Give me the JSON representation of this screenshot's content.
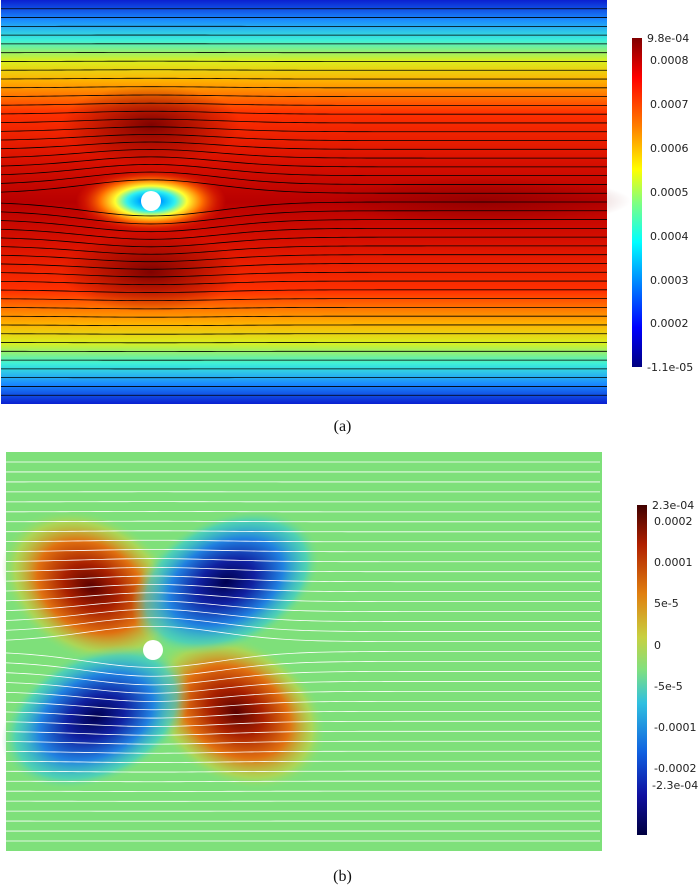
{
  "panels": [
    {
      "caption": "(a)",
      "colorbar": {
        "max_label": "9.8e-04",
        "min_label": "-1.1e-05",
        "ticks": [
          "0.0008",
          "0.0007",
          "0.0006",
          "0.0005",
          "0.0004",
          "0.0003",
          "0.0002"
        ],
        "colormap": "jet"
      },
      "streamline_color": "#000000"
    },
    {
      "caption": "(b)",
      "colorbar": {
        "max_label": "2.3e-04",
        "min_label": "-2.3e-04",
        "ticks": [
          "0.0002",
          "0.0001",
          "5e-5",
          "0",
          "-5e-5",
          "-0.0001",
          "-0.0002"
        ],
        "colormap": "jet"
      },
      "streamline_color": "#ffffff"
    }
  ]
}
